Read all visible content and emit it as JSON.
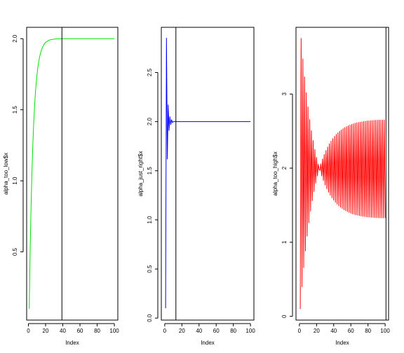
{
  "chart_data": [
    {
      "type": "line",
      "xlabel": "Index",
      "ylabel": "alpha_too_low$x",
      "xlim": [
        -2,
        104
      ],
      "ylim": [
        0.02,
        2.08
      ],
      "xticks": [
        0,
        20,
        40,
        60,
        80,
        100
      ],
      "yticks": [
        0.5,
        1.0,
        1.5,
        2.0
      ],
      "ytick_labels": [
        "0.5",
        "1.0",
        "1.5",
        "2.0"
      ],
      "color": "#00e000",
      "vline": 39,
      "model": {
        "kind": "monotone",
        "start": 0.1,
        "target": 2.0,
        "r": 0.8
      },
      "values": [
        0.1,
        0.48,
        0.784,
        1.027,
        1.222,
        1.378,
        1.502,
        1.602,
        1.681,
        1.745,
        1.796,
        1.837,
        1.869,
        1.895,
        1.916,
        1.933,
        1.946,
        1.957,
        1.966,
        1.973,
        1.978,
        1.982,
        1.986,
        1.989,
        1.991,
        1.993,
        1.994,
        1.995,
        1.996,
        1.997,
        1.998,
        1.998,
        1.999,
        1.999,
        1.999,
        1.999,
        2.0,
        2.0,
        2.0,
        2.0,
        2.0,
        2.0,
        2.0,
        2.0,
        2.0,
        2.0,
        2.0,
        2.0,
        2.0,
        2.0,
        2.0,
        2.0,
        2.0,
        2.0,
        2.0,
        2.0,
        2.0,
        2.0,
        2.0,
        2.0,
        2.0,
        2.0,
        2.0,
        2.0,
        2.0,
        2.0,
        2.0,
        2.0,
        2.0,
        2.0,
        2.0,
        2.0,
        2.0,
        2.0,
        2.0,
        2.0,
        2.0,
        2.0,
        2.0,
        2.0,
        2.0,
        2.0,
        2.0,
        2.0,
        2.0,
        2.0,
        2.0,
        2.0,
        2.0,
        2.0,
        2.0,
        2.0,
        2.0,
        2.0,
        2.0,
        2.0,
        2.0,
        2.0,
        2.0,
        2.0
      ]
    },
    {
      "type": "line",
      "xlabel": "Index",
      "ylabel": "alpha_just_right$x",
      "xlim": [
        -4,
        104
      ],
      "ylim": [
        -0.02,
        2.96
      ],
      "xticks": [
        0,
        20,
        40,
        60,
        80,
        100
      ],
      "yticks": [
        0.0,
        0.5,
        1.0,
        1.5,
        2.0,
        2.5
      ],
      "ytick_labels": [
        "0.0",
        "0.5",
        "1.0",
        "1.5",
        "2.0",
        "2.5"
      ],
      "color": "#0000ff",
      "vline": 13,
      "values": [
        0.1,
        2.85,
        1.62,
        2.17,
        1.91,
        2.05,
        1.97,
        2.02,
        1.99,
        2.0,
        2.0,
        2.0,
        2.0,
        2.0,
        2.0,
        2.0,
        2.0,
        2.0,
        2.0,
        2.0,
        2.0,
        2.0,
        2.0,
        2.0,
        2.0,
        2.0,
        2.0,
        2.0,
        2.0,
        2.0,
        2.0,
        2.0,
        2.0,
        2.0,
        2.0,
        2.0,
        2.0,
        2.0,
        2.0,
        2.0,
        2.0,
        2.0,
        2.0,
        2.0,
        2.0,
        2.0,
        2.0,
        2.0,
        2.0,
        2.0,
        2.0,
        2.0,
        2.0,
        2.0,
        2.0,
        2.0,
        2.0,
        2.0,
        2.0,
        2.0,
        2.0,
        2.0,
        2.0,
        2.0,
        2.0,
        2.0,
        2.0,
        2.0,
        2.0,
        2.0,
        2.0,
        2.0,
        2.0,
        2.0,
        2.0,
        2.0,
        2.0,
        2.0,
        2.0,
        2.0,
        2.0,
        2.0,
        2.0,
        2.0,
        2.0,
        2.0,
        2.0,
        2.0,
        2.0,
        2.0,
        2.0,
        2.0,
        2.0,
        2.0,
        2.0,
        2.0,
        2.0,
        2.0,
        2.0,
        2.0
      ]
    },
    {
      "type": "line",
      "xlabel": "Index",
      "ylabel": "alpha_too_high$x",
      "xlim": [
        -4,
        104
      ],
      "ylim": [
        -0.05,
        3.9
      ],
      "xticks": [
        0,
        20,
        40,
        60,
        80,
        100
      ],
      "yticks": [
        0,
        1,
        2,
        3
      ],
      "ytick_labels": [
        "0",
        "1",
        "2",
        "3"
      ],
      "color": "#ff0000",
      "vline": 101,
      "model": {
        "kind": "oscillating",
        "start": 0.1,
        "target": 2.0,
        "first_peak": 3.75,
        "r": 0.94
      },
      "values": [
        0.1,
        3.75,
        0.4,
        3.476,
        0.656,
        3.233,
        0.883,
        3.017,
        1.084,
        2.826,
        1.262,
        2.656,
        1.42,
        2.505,
        1.561,
        2.371,
        1.685,
        2.252,
        1.796,
        2.146,
        1.894,
        2.053,
        1.98,
        1.97,
        2.057,
        1.896,
        2.125,
        1.831,
        2.185,
        1.773,
        2.239,
        1.722,
        2.286,
        1.676,
        2.329,
        1.636,
        2.366,
        1.6,
        2.399,
        1.568,
        2.429,
        1.54,
        2.455,
        1.515,
        2.478,
        1.492,
        2.498,
        1.473,
        2.517,
        1.455,
        2.533,
        1.439,
        2.547,
        1.425,
        2.56,
        1.413,
        2.571,
        1.402,
        2.581,
        1.392,
        2.59,
        1.384,
        2.598,
        1.376,
        2.605,
        1.37,
        2.611,
        1.364,
        2.617,
        1.359,
        2.621,
        1.354,
        2.626,
        1.35,
        2.629,
        1.347,
        2.633,
        1.344,
        2.636,
        1.341,
        2.638,
        1.339,
        2.64,
        1.337,
        2.642,
        1.335,
        2.644,
        1.333,
        2.645,
        1.332,
        2.647,
        1.331,
        2.648,
        1.33,
        2.649,
        1.329,
        2.649,
        1.328,
        2.65,
        1.328
      ]
    }
  ]
}
